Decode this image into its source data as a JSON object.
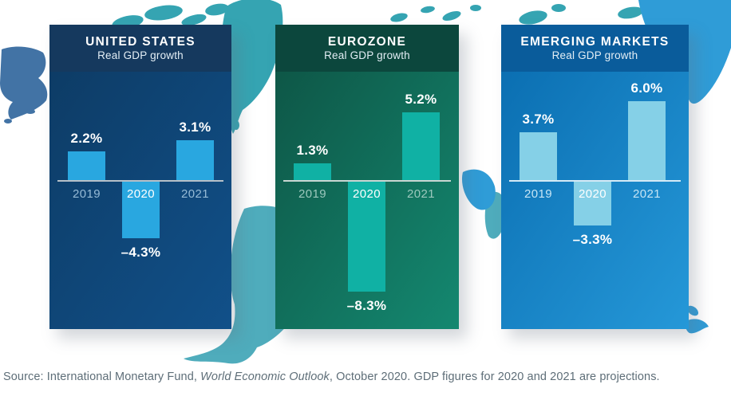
{
  "chart_data": [
    {
      "type": "bar",
      "region": "United States",
      "title": "UNITED STATES",
      "subtitle": "Real GDP growth",
      "categories": [
        "2019",
        "2020",
        "2021"
      ],
      "values": [
        2.2,
        -4.3,
        3.1
      ],
      "value_labels": [
        "2.2%",
        "–4.3%",
        "3.1%"
      ],
      "unit": "percent",
      "ylim": [
        -9,
        7
      ],
      "grid": false,
      "colors": {
        "header": "#15395E",
        "body_top": "#0D3C66",
        "body_bottom": "#115089",
        "bar": "#29A7E0",
        "axis": "#B7C0C8",
        "year_label": "#96BBD6",
        "year_label_on_bar": "#FFFFFF",
        "value_label": "#FFFFFF"
      }
    },
    {
      "type": "bar",
      "region": "Eurozone",
      "title": "EUROZONE",
      "subtitle": "Real GDP growth",
      "categories": [
        "2019",
        "2020",
        "2021"
      ],
      "values": [
        1.3,
        -8.3,
        5.2
      ],
      "value_labels": [
        "1.3%",
        "–8.3%",
        "5.2%"
      ],
      "unit": "percent",
      "ylim": [
        -9,
        7
      ],
      "grid": false,
      "colors": {
        "header": "#0C473D",
        "body_top": "#0E5747",
        "body_bottom": "#148870",
        "bar": "#10B1A4",
        "axis": "#C9D6D2",
        "year_label": "#9CC8BD",
        "year_label_on_bar": "#FFFFFF",
        "value_label": "#FFFFFF"
      }
    },
    {
      "type": "bar",
      "region": "Emerging Markets",
      "title": "EMERGING MARKETS",
      "subtitle": "Real GDP growth",
      "categories": [
        "2019",
        "2020",
        "2021"
      ],
      "values": [
        3.7,
        -3.3,
        6.0
      ],
      "value_labels": [
        "3.7%",
        "–3.3%",
        "6.0%"
      ],
      "unit": "percent",
      "ylim": [
        -9,
        7
      ],
      "grid": false,
      "colors": {
        "header": "#0A5C9B",
        "body_top": "#0B6FB2",
        "body_bottom": "#2598D8",
        "bar": "#85D0E7",
        "axis": "#D5EAF6",
        "year_label": "#C6E5F5",
        "year_label_on_bar": "#FFFFFF",
        "value_label": "#FFFFFF"
      }
    }
  ],
  "source": {
    "prefix": "Source: International Monetary Fund, ",
    "italic": "World Economic Outlook",
    "suffix": ", October 2020. GDP figures for 2020 and 2021 are projections."
  },
  "map_colors": {
    "americas_blue": "#4273A5",
    "arctic_teal": "#35A4B2",
    "south_america_teal": "#4FACBC",
    "asia_blue": "#2F9CD7"
  }
}
